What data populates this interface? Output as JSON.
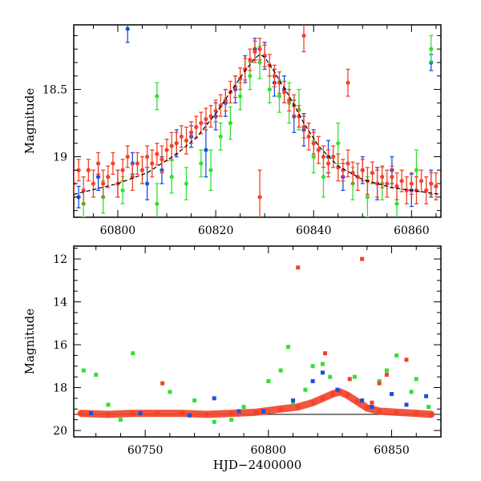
{
  "chart_data": [
    {
      "panel": "top",
      "type": "scatter",
      "ylabel": "Magnitude",
      "xlabel": "",
      "xlim": [
        60791,
        60866
      ],
      "ylim": [
        19.45,
        18.02
      ],
      "y_inverted": true,
      "x_ticks": [
        "60800",
        "60820",
        "60840",
        "60860"
      ],
      "y_ticks": [
        "18.5",
        "19"
      ],
      "series": [
        {
          "color": "#1a4fe0",
          "points": [
            [
              60792,
              19.3,
              0.08
            ],
            [
              60796,
              19.15,
              0.1
            ],
            [
              60800,
              19.2,
              0.1
            ],
            [
              60803,
              19.05,
              0.08
            ],
            [
              60806,
              19.2,
              0.12
            ],
            [
              60809,
              19.1,
              0.1
            ],
            [
              60812,
              18.9,
              0.1
            ],
            [
              60815,
              18.85,
              0.08
            ],
            [
              60818,
              18.95,
              0.2
            ],
            [
              60820,
              18.7,
              0.1
            ],
            [
              60822,
              18.6,
              0.1
            ],
            [
              60824,
              18.5,
              0.1
            ],
            [
              60826,
              18.35,
              0.1
            ],
            [
              60828,
              18.2,
              0.08
            ],
            [
              60830,
              18.25,
              0.1
            ],
            [
              60832,
              18.45,
              0.1
            ],
            [
              60834,
              18.5,
              0.1
            ],
            [
              60836,
              18.7,
              0.12
            ],
            [
              60838,
              18.8,
              0.12
            ],
            [
              60840,
              18.9,
              0.1
            ],
            [
              60843,
              19.0,
              0.12
            ],
            [
              60846,
              19.15,
              0.1
            ],
            [
              60850,
              19.1,
              0.1
            ],
            [
              60853,
              19.2,
              0.12
            ],
            [
              60856,
              19.1,
              0.1
            ],
            [
              60860,
              19.25,
              0.12
            ],
            [
              60864,
              19.2,
              0.1
            ],
            [
              60802,
              18.05,
              0.1
            ],
            [
              60864,
              18.3,
              0.06
            ]
          ]
        },
        {
          "color": "#33e033",
          "points": [
            [
              60793,
              19.35,
              0.1
            ],
            [
              60797,
              19.3,
              0.12
            ],
            [
              60801,
              19.25,
              0.1
            ],
            [
              60805,
              19.1,
              0.1
            ],
            [
              60808,
              19.35,
              0.15
            ],
            [
              60811,
              19.15,
              0.12
            ],
            [
              60814,
              19.2,
              0.12
            ],
            [
              60817,
              19.05,
              0.1
            ],
            [
              60819,
              19.1,
              0.15
            ],
            [
              60821,
              18.85,
              0.1
            ],
            [
              60823,
              18.75,
              0.12
            ],
            [
              60825,
              18.55,
              0.1
            ],
            [
              60827,
              18.4,
              0.1
            ],
            [
              60829,
              18.3,
              0.12
            ],
            [
              60831,
              18.5,
              0.1
            ],
            [
              60833,
              18.55,
              0.12
            ],
            [
              60835,
              18.6,
              0.15
            ],
            [
              60837,
              18.65,
              0.15
            ],
            [
              60840,
              19.0,
              0.12
            ],
            [
              60842,
              19.15,
              0.15
            ],
            [
              60845,
              18.9,
              0.15
            ],
            [
              60848,
              19.2,
              0.12
            ],
            [
              60851,
              19.3,
              0.15
            ],
            [
              60854,
              19.2,
              0.12
            ],
            [
              60857,
              19.35,
              0.12
            ],
            [
              60861,
              19.1,
              0.15
            ],
            [
              60864,
              18.2,
              0.1
            ],
            [
              60808,
              18.55,
              0.1
            ]
          ]
        },
        {
          "color": "#f24228",
          "points": [
            [
              60791,
              19.2,
              0.1
            ],
            [
              60792,
              19.1,
              0.08
            ],
            [
              60793,
              19.25,
              0.1
            ],
            [
              60794,
              19.1,
              0.08
            ],
            [
              60795,
              19.2,
              0.1
            ],
            [
              60796,
              19.05,
              0.08
            ],
            [
              60797,
              19.2,
              0.1
            ],
            [
              60798,
              19.15,
              0.08
            ],
            [
              60799,
              19.05,
              0.08
            ],
            [
              60800,
              19.2,
              0.1
            ],
            [
              60801,
              19.1,
              0.08
            ],
            [
              60802,
              19.0,
              0.08
            ],
            [
              60803,
              19.15,
              0.1
            ],
            [
              60804,
              19.05,
              0.08
            ],
            [
              60805,
              19.1,
              0.1
            ],
            [
              60806,
              19.0,
              0.08
            ],
            [
              60807,
              19.05,
              0.1
            ],
            [
              60808,
              18.98,
              0.08
            ],
            [
              60809,
              19.02,
              0.1
            ],
            [
              60810,
              18.95,
              0.08
            ],
            [
              60811,
              18.92,
              0.1
            ],
            [
              60812,
              18.9,
              0.08
            ],
            [
              60813,
              18.85,
              0.08
            ],
            [
              60814,
              18.88,
              0.1
            ],
            [
              60815,
              18.82,
              0.08
            ],
            [
              60816,
              18.78,
              0.08
            ],
            [
              60817,
              18.75,
              0.08
            ],
            [
              60818,
              18.72,
              0.08
            ],
            [
              60819,
              18.7,
              0.08
            ],
            [
              60820,
              18.66,
              0.08
            ],
            [
              60821,
              18.62,
              0.08
            ],
            [
              60822,
              18.58,
              0.08
            ],
            [
              60823,
              18.52,
              0.08
            ],
            [
              60824,
              18.48,
              0.08
            ],
            [
              60825,
              18.42,
              0.08
            ],
            [
              60826,
              18.35,
              0.08
            ],
            [
              60827,
              18.28,
              0.08
            ],
            [
              60828,
              18.22,
              0.08
            ],
            [
              60829,
              18.2,
              0.08
            ],
            [
              60830,
              18.25,
              0.08
            ],
            [
              60831,
              18.32,
              0.08
            ],
            [
              60832,
              18.4,
              0.08
            ],
            [
              60833,
              18.45,
              0.08
            ],
            [
              60834,
              18.52,
              0.08
            ],
            [
              60835,
              18.58,
              0.08
            ],
            [
              60836,
              18.62,
              0.08
            ],
            [
              60837,
              18.7,
              0.08
            ],
            [
              60838,
              18.78,
              0.08
            ],
            [
              60839,
              18.85,
              0.1
            ],
            [
              60840,
              18.9,
              0.08
            ],
            [
              60841,
              18.95,
              0.1
            ],
            [
              60842,
              19.0,
              0.08
            ],
            [
              60843,
              19.05,
              0.1
            ],
            [
              60844,
              19.0,
              0.08
            ],
            [
              60845,
              19.08,
              0.1
            ],
            [
              60846,
              19.1,
              0.08
            ],
            [
              60847,
              19.05,
              0.1
            ],
            [
              60848,
              19.12,
              0.08
            ],
            [
              60849,
              19.15,
              0.1
            ],
            [
              60850,
              19.1,
              0.08
            ],
            [
              60851,
              19.18,
              0.1
            ],
            [
              60852,
              19.12,
              0.08
            ],
            [
              60853,
              19.2,
              0.1
            ],
            [
              60854,
              19.15,
              0.08
            ],
            [
              60855,
              19.2,
              0.1
            ],
            [
              60856,
              19.15,
              0.08
            ],
            [
              60857,
              19.22,
              0.1
            ],
            [
              60858,
              19.18,
              0.08
            ],
            [
              60859,
              19.25,
              0.1
            ],
            [
              60860,
              19.2,
              0.08
            ],
            [
              60861,
              19.25,
              0.1
            ],
            [
              60862,
              19.18,
              0.08
            ],
            [
              60863,
              19.25,
              0.1
            ],
            [
              60864,
              19.2,
              0.08
            ],
            [
              60865,
              19.22,
              0.1
            ],
            [
              60829,
              19.3,
              0.2
            ],
            [
              60838,
              18.1,
              0.12
            ],
            [
              60847,
              18.45,
              0.1
            ]
          ]
        }
      ],
      "model_curve": {
        "color": "#000000",
        "points": [
          [
            60791,
            19.28
          ],
          [
            60800,
            19.2
          ],
          [
            60806,
            19.12
          ],
          [
            60812,
            18.98
          ],
          [
            60816,
            18.86
          ],
          [
            60820,
            18.68
          ],
          [
            60823,
            18.52
          ],
          [
            60826,
            18.36
          ],
          [
            60828,
            18.27
          ],
          [
            60829,
            18.24
          ],
          [
            60830,
            18.26
          ],
          [
            60832,
            18.37
          ],
          [
            60835,
            18.55
          ],
          [
            60838,
            18.75
          ],
          [
            60841,
            18.92
          ],
          [
            60845,
            19.07
          ],
          [
            60850,
            19.17
          ],
          [
            60856,
            19.23
          ],
          [
            60866,
            19.28
          ]
        ]
      }
    },
    {
      "panel": "bottom",
      "type": "scatter",
      "ylabel": "Magnitude",
      "xlabel": "HJD−2400000",
      "xlim": [
        60721,
        60870
      ],
      "ylim": [
        20.3,
        11.4
      ],
      "y_inverted": true,
      "x_ticks": [
        "60750",
        "60800",
        "60850"
      ],
      "y_ticks": [
        "12",
        "14",
        "16",
        "18",
        "20"
      ],
      "threshold_line": 19.25,
      "series": [
        {
          "color": "#33e033",
          "points": [
            [
              60725,
              17.2
            ],
            [
              60730,
              17.4
            ],
            [
              60745,
              16.4
            ],
            [
              60735,
              18.8
            ],
            [
              60760,
              18.2
            ],
            [
              60770,
              18.6
            ],
            [
              60778,
              19.6
            ],
            [
              60790,
              18.9
            ],
            [
              60800,
              17.7
            ],
            [
              60805,
              17.2
            ],
            [
              60808,
              16.1
            ],
            [
              60810,
              18.7
            ],
            [
              60815,
              18.1
            ],
            [
              60818,
              17.0
            ],
            [
              60822,
              16.9
            ],
            [
              60825,
              17.5
            ],
            [
              60835,
              17.5
            ],
            [
              60845,
              17.7
            ],
            [
              60848,
              17.2
            ],
            [
              60852,
              16.5
            ],
            [
              60858,
              18.2
            ],
            [
              60860,
              17.6
            ],
            [
              60865,
              18.9
            ],
            [
              60740,
              19.5
            ],
            [
              60785,
              19.5
            ]
          ]
        },
        {
          "color": "#1a4fe0",
          "points": [
            [
              60728,
              19.2
            ],
            [
              60748,
              19.2
            ],
            [
              60768,
              19.3
            ],
            [
              60778,
              18.5
            ],
            [
              60788,
              19.1
            ],
            [
              60798,
              19.1
            ],
            [
              60810,
              18.6
            ],
            [
              60818,
              17.7
            ],
            [
              60822,
              17.3
            ],
            [
              60828,
              18.1
            ],
            [
              60838,
              18.6
            ],
            [
              60842,
              18.9
            ],
            [
              60850,
              18.3
            ],
            [
              60856,
              18.8
            ],
            [
              60864,
              18.4
            ]
          ]
        },
        {
          "color": "#f24228",
          "points": [
            [
              60812,
              12.4
            ],
            [
              60838,
              12.0
            ],
            [
              60757,
              17.8
            ],
            [
              60823,
              16.4
            ],
            [
              60848,
              17.4
            ],
            [
              60856,
              16.7
            ],
            [
              60845,
              17.8
            ],
            [
              60833,
              17.6
            ],
            [
              60842,
              18.7
            ]
          ]
        }
      ],
      "dense_band": {
        "color": "#f24228",
        "points": [
          [
            60724,
            19.2
          ],
          [
            60735,
            19.25
          ],
          [
            60745,
            19.2
          ],
          [
            60755,
            19.2
          ],
          [
            60765,
            19.2
          ],
          [
            60775,
            19.25
          ],
          [
            60785,
            19.2
          ],
          [
            60795,
            19.15
          ],
          [
            60805,
            19.0
          ],
          [
            60812,
            18.9
          ],
          [
            60818,
            18.7
          ],
          [
            60822,
            18.5
          ],
          [
            60826,
            18.3
          ],
          [
            60829,
            18.2
          ],
          [
            60832,
            18.35
          ],
          [
            60836,
            18.65
          ],
          [
            60840,
            18.95
          ],
          [
            60845,
            19.1
          ],
          [
            60852,
            19.15
          ],
          [
            60860,
            19.2
          ],
          [
            60866,
            19.25
          ]
        ]
      }
    }
  ]
}
